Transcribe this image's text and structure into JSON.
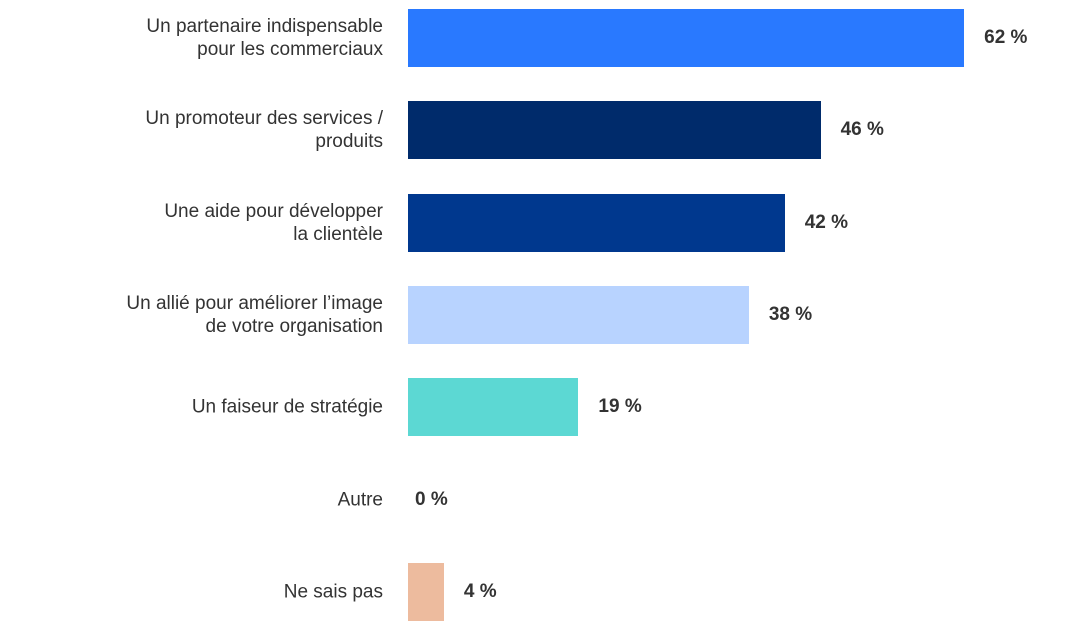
{
  "chart_data": {
    "type": "barh",
    "categories": [
      "Un partenaire indispensable\npour les commerciaux",
      "Un promoteur des services /\nproduits",
      "Une aide pour développer\nla clientèle",
      "Un allié pour améliorer l’image\nde votre organisation",
      "Un faiseur de stratégie",
      "Autre",
      "Ne sais pas"
    ],
    "values": [
      62,
      46,
      42,
      38,
      19,
      0,
      4
    ],
    "value_labels": [
      "62 %",
      "46 %",
      "42 %",
      "38 %",
      "19 %",
      "0 %",
      "4 %"
    ],
    "colors": [
      "#2979ff",
      "#002b6b",
      "#00388e",
      "#b8d3ff",
      "#5cd8d3",
      "#9e9e9e",
      "#edbb9e"
    ]
  }
}
